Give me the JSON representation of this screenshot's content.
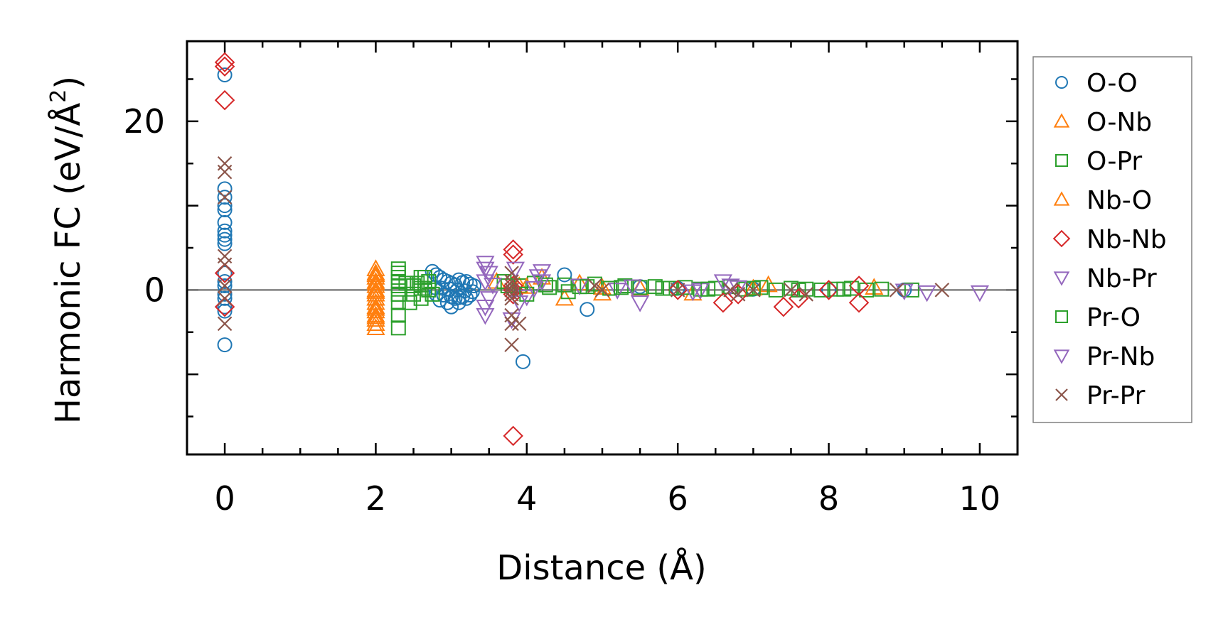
{
  "chart_data": {
    "type": "scatter",
    "xlabel": "Distance (Å)",
    "ylabel_main": "Harmonic FC (eV/Å",
    "ylabel_sup": "2",
    "ylabel_close": ")",
    "xlim": [
      -0.5,
      10.5
    ],
    "ylim": [
      -19.5,
      29.5
    ],
    "x_ticks": [
      0,
      2,
      4,
      6,
      8,
      10
    ],
    "x_tick_labels": [
      "0",
      "2",
      "4",
      "6",
      "8",
      "10"
    ],
    "y_ticks": [
      0,
      20
    ],
    "y_tick_labels": [
      "0",
      "20"
    ],
    "zero_line": true,
    "grid": false,
    "legend_position": "right-outside",
    "series": [
      {
        "name": "O-O",
        "marker": "circle",
        "color": "#1f77b4",
        "x": [
          0,
          0,
          0,
          0,
          0,
          0,
          0,
          0,
          0,
          0,
          0,
          0,
          0,
          0,
          0,
          0,
          0,
          0,
          2.75,
          2.8,
          2.85,
          2.9,
          2.95,
          3.0,
          3.05,
          3.1,
          3.15,
          3.2,
          3.25,
          3.3,
          2.78,
          2.88,
          2.98,
          3.08,
          3.18,
          3.28,
          2.8,
          2.9,
          3.0,
          3.1,
          3.2,
          2.85,
          2.95,
          3.05,
          3.15,
          3.25,
          3.0,
          3.1,
          3.95,
          4.5,
          4.8,
          5.5,
          6.0,
          7.0,
          8.0,
          9.0
        ],
        "y": [
          25.5,
          12,
          11,
          10,
          9.5,
          8,
          7,
          6.5,
          6,
          5.5,
          2,
          1,
          0.5,
          -0.5,
          -1,
          -2,
          -2.5,
          -6.5,
          2.2,
          1.8,
          1.5,
          1.2,
          1.0,
          0.8,
          0.6,
          1.2,
          0.9,
          1.0,
          0.7,
          0.5,
          0.3,
          0.2,
          0.1,
          0.0,
          -0.1,
          -0.2,
          -0.5,
          -0.6,
          -0.8,
          -0.9,
          -1.0,
          -1.2,
          -1.5,
          -1.0,
          -0.8,
          -0.6,
          -2.0,
          -1.5,
          -8.5,
          1.8,
          -2.3,
          0.4,
          0.2,
          0.1,
          0.0,
          0.0
        ]
      },
      {
        "name": "O-Nb",
        "marker": "triangle-up",
        "color": "#ff7f0e",
        "x": [
          2.0,
          2.0,
          2.0,
          2.0,
          2.0,
          2.0,
          2.0,
          2.0,
          2.0,
          2.0,
          2.0,
          2.0,
          2.0,
          2.0,
          2.0,
          2.0,
          3.6,
          3.9,
          4.2,
          4.5,
          4.7,
          5.0,
          5.5,
          6.2,
          7.2,
          8.6
        ],
        "y": [
          2.5,
          2.0,
          1.5,
          1.0,
          0.5,
          0.0,
          -0.2,
          -0.5,
          -1.0,
          -1.5,
          -2.0,
          -2.5,
          -3.0,
          -3.5,
          -4.0,
          -4.5,
          1.0,
          0.5,
          1.5,
          -1.0,
          0.8,
          0.3,
          0.2,
          -0.4,
          0.6,
          0.3
        ]
      },
      {
        "name": "O-Pr",
        "marker": "square",
        "color": "#2ca02c",
        "x": [
          2.3,
          2.3,
          2.3,
          2.3,
          2.3,
          2.3,
          2.3,
          2.3,
          2.3,
          2.5,
          2.55,
          2.6,
          2.65,
          2.7,
          2.75,
          2.5,
          2.6,
          2.7,
          3.7,
          3.9,
          4.1,
          4.3,
          4.5,
          4.7,
          4.9,
          5.1,
          5.3,
          5.5,
          5.7,
          5.9,
          6.1,
          6.3,
          6.5,
          6.7,
          6.9,
          7.1,
          7.3,
          7.5,
          7.7,
          7.9,
          8.1,
          8.3,
          8.5,
          8.7,
          9.1
        ],
        "y": [
          2.5,
          2.0,
          1.5,
          1.0,
          0.5,
          -0.5,
          -1.5,
          -3.0,
          -4.5,
          0.5,
          0.8,
          0.2,
          1.5,
          1.0,
          -0.5,
          -0.5,
          -1.0,
          0.0,
          1.0,
          0.5,
          0.8,
          0.3,
          0.6,
          0.4,
          0.7,
          0.2,
          0.5,
          0.3,
          0.4,
          0.2,
          0.3,
          0.1,
          0.2,
          0.4,
          0.1,
          0.3,
          0.0,
          0.2,
          0.1,
          0.0,
          0.1,
          0.2,
          0.0,
          0.1,
          0.0
        ]
      },
      {
        "name": "Nb-O",
        "marker": "triangle-up",
        "color": "#ff7f0e",
        "x": [
          2.0,
          2.0,
          2.0,
          2.0,
          2.0,
          4.0,
          5.0,
          7.0
        ],
        "y": [
          -1.0,
          0.8,
          -2.2,
          1.8,
          -3.2,
          0.4,
          -0.4,
          0.2
        ]
      },
      {
        "name": "Nb-Nb",
        "marker": "diamond",
        "color": "#d62728",
        "x": [
          0,
          0,
          0,
          0,
          0,
          3.82,
          3.82,
          3.82,
          3.82,
          3.82,
          3.82,
          6.0,
          6.6,
          6.8,
          7.4,
          7.6,
          8.0,
          8.4,
          8.4
        ],
        "y": [
          27,
          26.5,
          22.5,
          2,
          -2,
          4.8,
          4.2,
          0.5,
          0,
          -0.5,
          -17.3,
          0,
          -1.5,
          -0.5,
          -2,
          -1,
          0,
          0.5,
          -1.5
        ]
      },
      {
        "name": "Nb-Pr",
        "marker": "triangle-down",
        "color": "#9467bd",
        "x": [
          3.45,
          3.45,
          3.45,
          3.45,
          3.45,
          3.8,
          3.85,
          4.0,
          4.2,
          4.2,
          4.7,
          5.2,
          5.5,
          6.3,
          6.6,
          6.7,
          9.3,
          10.0
        ],
        "y": [
          3.2,
          2.5,
          1.0,
          -2.0,
          -3.0,
          -3.5,
          2.5,
          -0.8,
          2.2,
          1.0,
          0.5,
          0.0,
          -1.5,
          0.0,
          1.0,
          0.5,
          -0.3,
          -0.3
        ]
      },
      {
        "name": "Pr-O",
        "marker": "square",
        "color": "#2ca02c",
        "x": [
          2.3,
          2.4,
          2.45,
          2.6,
          2.65,
          3.75,
          4.0,
          4.25,
          4.55,
          4.8,
          5.25,
          5.8,
          6.4,
          7.0,
          7.6,
          8.2
        ],
        "y": [
          -0.5,
          0.8,
          -1.5,
          1.5,
          0.2,
          0.5,
          -0.5,
          0.6,
          -0.2,
          0.4,
          0.3,
          0.2,
          0.1,
          0.2,
          0.0,
          0.1
        ]
      },
      {
        "name": "Pr-Nb",
        "marker": "triangle-down",
        "color": "#9467bd",
        "x": [
          3.5,
          3.5,
          3.55,
          3.9,
          4.1,
          4.15,
          5.4,
          6.2,
          6.8,
          9.0
        ],
        "y": [
          2.0,
          -1.0,
          0.6,
          -1.5,
          0.2,
          1.6,
          0.4,
          -0.2,
          0.3,
          -0.1
        ]
      },
      {
        "name": "Pr-Pr",
        "marker": "x",
        "color": "#8c564b",
        "x": [
          0,
          0,
          0,
          0,
          0,
          0,
          0,
          0,
          3.8,
          3.8,
          3.8,
          3.8,
          3.8,
          3.8,
          3.8,
          3.8,
          3.8,
          3.9,
          4.9,
          5.0,
          6.0,
          6.7,
          6.8,
          7.0,
          7.5,
          7.7,
          8.9,
          9.5
        ],
        "y": [
          15,
          14,
          11,
          4,
          3,
          0.5,
          -1,
          -4,
          2,
          1,
          0.5,
          0,
          -0.5,
          -1,
          -3,
          -4,
          -6.5,
          -4,
          0.5,
          0,
          0,
          0,
          -0.5,
          0,
          0,
          -0.5,
          0,
          0
        ]
      }
    ]
  }
}
